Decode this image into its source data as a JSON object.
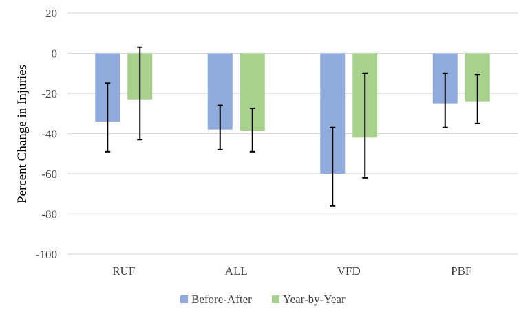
{
  "chart_data": {
    "type": "bar",
    "ylabel": "Percent Change in Injuries",
    "ylim": [
      -100,
      20
    ],
    "yticks": [
      "20",
      "0",
      "-20",
      "-40",
      "-60",
      "-80",
      "-100"
    ],
    "ytick_values": [
      20,
      0,
      -20,
      -40,
      -60,
      -80,
      -100
    ],
    "grid": true,
    "legend_position": "bottom",
    "categories": [
      "RUF",
      "ALL",
      "VFD",
      "PBF"
    ],
    "series": [
      {
        "name": "Before-After",
        "color": "#8faadc",
        "values": [
          -34,
          -38,
          -60,
          -25
        ],
        "error_low": [
          -49,
          -48,
          -76,
          -37
        ],
        "error_high": [
          -15,
          -26,
          -37,
          -10
        ]
      },
      {
        "name": "Year-by-Year",
        "color": "#a9d18e",
        "values": [
          -23,
          -38.5,
          -42,
          -24
        ],
        "error_low": [
          -43,
          -49,
          -62,
          -35
        ],
        "error_high": [
          3,
          -27.5,
          -10,
          -10.5
        ]
      }
    ]
  }
}
